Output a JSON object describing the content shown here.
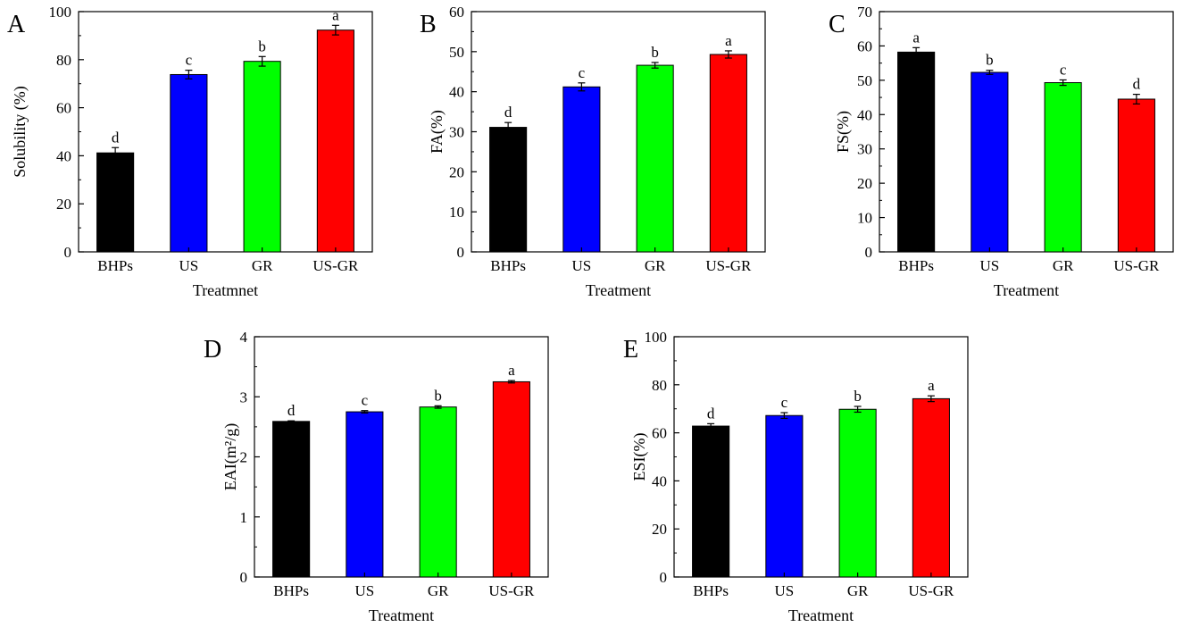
{
  "colors": {
    "BHPs": "#000000",
    "US": "#0000ff",
    "GR": "#00ff00",
    "US-GR": "#ff0000",
    "axis": "#000000"
  },
  "chart_data": [
    {
      "panel": "A",
      "type": "bar",
      "categories": [
        "BHPs",
        "US",
        "GR",
        "US-GR"
      ],
      "values": [
        41.2,
        73.8,
        79.3,
        92.3
      ],
      "errors": [
        2.2,
        1.8,
        2.0,
        2.0
      ],
      "letters": [
        "d",
        "c",
        "b",
        "a"
      ],
      "xlabel": "Treatmnet",
      "ylabel": "Solubility (%)",
      "ylim": [
        0,
        100
      ],
      "yticks": [
        0,
        20,
        40,
        60,
        80,
        100
      ],
      "ytick_labels": [
        "0",
        "20",
        "40",
        "60",
        "80",
        "100"
      ]
    },
    {
      "panel": "B",
      "type": "bar",
      "categories": [
        "BHPs",
        "US",
        "GR",
        "US-GR"
      ],
      "values": [
        31.1,
        41.2,
        46.6,
        49.3
      ],
      "errors": [
        1.2,
        1.0,
        0.7,
        0.9
      ],
      "letters": [
        "d",
        "c",
        "b",
        "a"
      ],
      "xlabel": "Treatment",
      "ylabel": "FA(%)",
      "ylim": [
        0,
        60
      ],
      "yticks": [
        0,
        10,
        20,
        30,
        40,
        50,
        60
      ],
      "ytick_labels": [
        "0",
        "10",
        "20",
        "30",
        "40",
        "50",
        "60"
      ]
    },
    {
      "panel": "C",
      "type": "bar",
      "categories": [
        "BHPs",
        "US",
        "GR",
        "US-GR"
      ],
      "values": [
        58.2,
        52.3,
        49.3,
        44.5
      ],
      "errors": [
        1.3,
        0.6,
        0.8,
        1.4
      ],
      "letters": [
        "a",
        "b",
        "c",
        "d"
      ],
      "xlabel": "Treatment",
      "ylabel": "FS(%)",
      "ylim": [
        0,
        70
      ],
      "yticks": [
        0,
        10,
        20,
        30,
        40,
        50,
        60,
        70
      ],
      "ytick_labels": [
        "0",
        "10",
        "20",
        "30",
        "40",
        "50",
        "60",
        "70"
      ]
    },
    {
      "panel": "D",
      "type": "bar",
      "categories": [
        "BHPs",
        "US",
        "GR",
        "US-GR"
      ],
      "values": [
        2.59,
        2.75,
        2.83,
        3.25
      ],
      "errors": [
        0.01,
        0.02,
        0.02,
        0.02
      ],
      "letters": [
        "d",
        "c",
        "b",
        "a"
      ],
      "xlabel": "Treatment",
      "ylabel": "EAI(m²/g)",
      "ylim": [
        0,
        4
      ],
      "yticks": [
        0,
        1,
        2,
        3,
        4
      ],
      "ytick_labels": [
        "0",
        "1",
        "2",
        "3",
        "4"
      ]
    },
    {
      "panel": "E",
      "type": "bar",
      "categories": [
        "BHPs",
        "US",
        "GR",
        "US-GR"
      ],
      "values": [
        62.8,
        67.2,
        69.8,
        74.2
      ],
      "errors": [
        1.0,
        1.2,
        1.2,
        1.2
      ],
      "letters": [
        "d",
        "c",
        "b",
        "a"
      ],
      "xlabel": "Treatment",
      "ylabel": "ESI(%)",
      "ylim": [
        0,
        100
      ],
      "yticks": [
        0,
        20,
        40,
        60,
        80,
        100
      ],
      "ytick_labels": [
        "0",
        "20",
        "40",
        "60",
        "80",
        "100"
      ]
    }
  ]
}
